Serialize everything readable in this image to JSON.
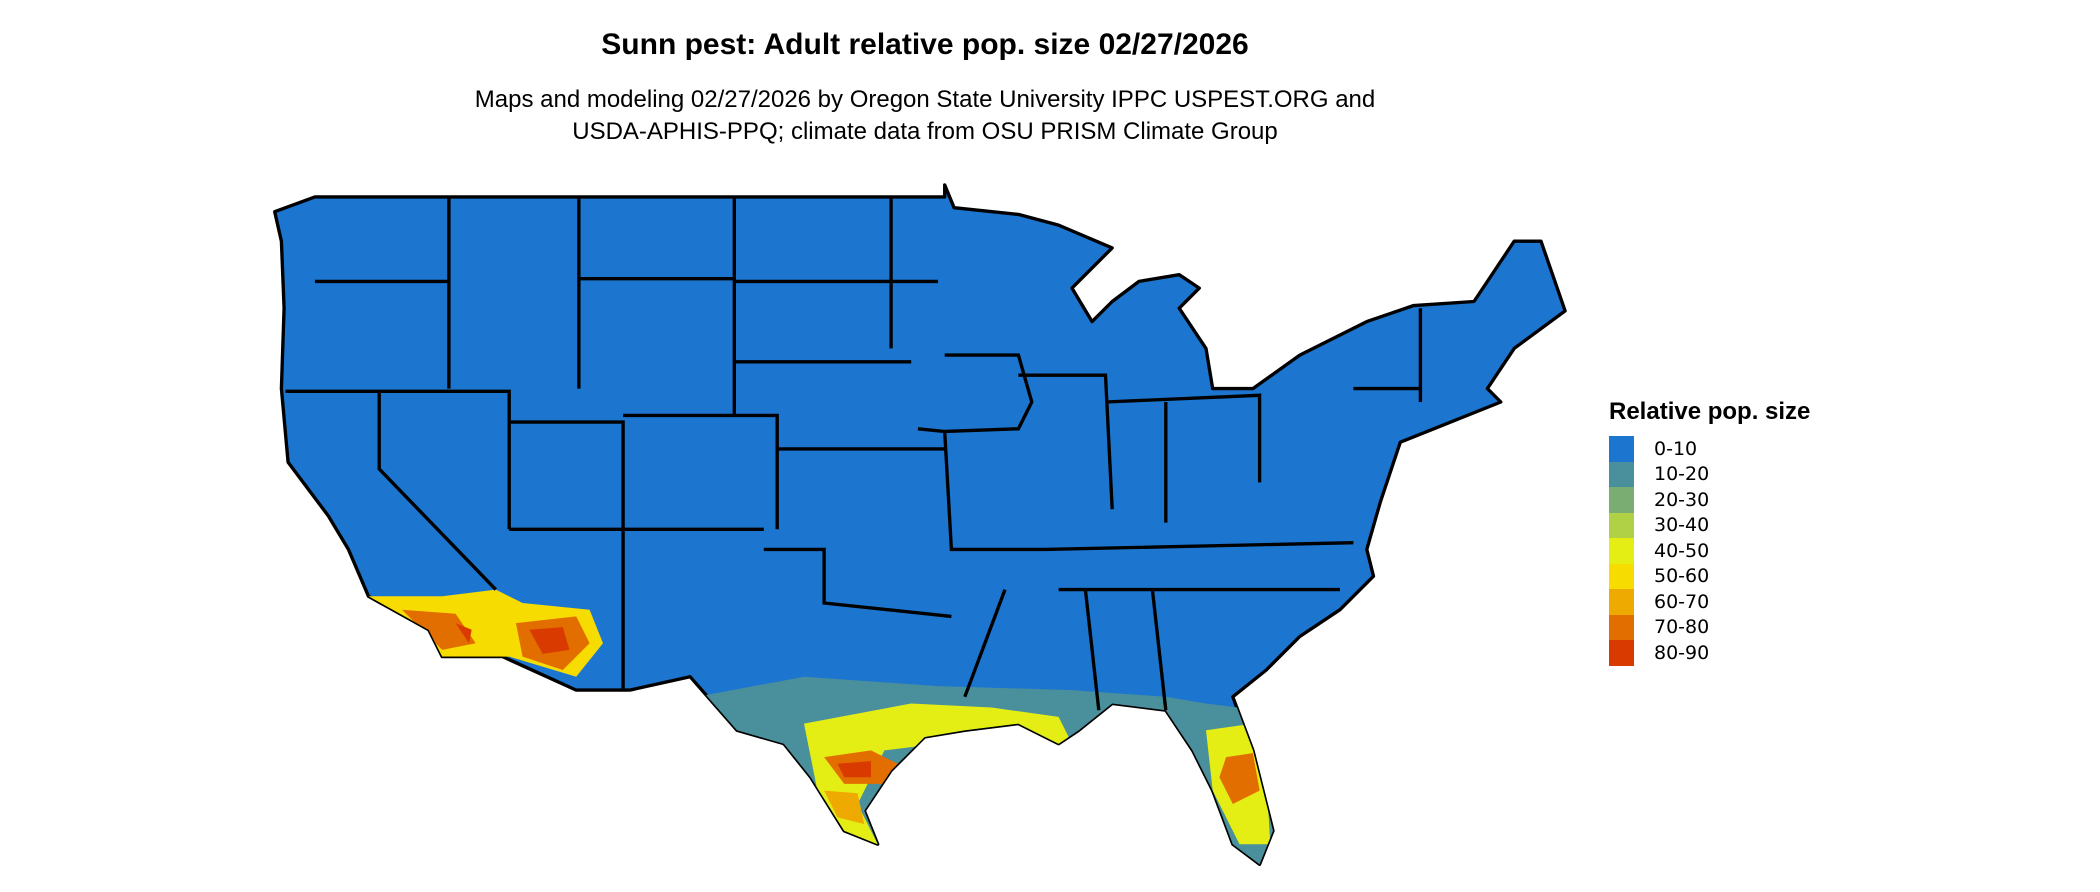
{
  "title": "Sunn pest: Adult relative pop. size 02/27/2026",
  "subtitle_lines": [
    "Maps and modeling 02/27/2026 by Oregon State University IPPC USPEST.ORG and",
    "USDA-APHIS-PPQ; climate data from OSU PRISM Climate Group"
  ],
  "legend": {
    "title": "Relative pop. size",
    "items": [
      {
        "label": "0-10",
        "color": "#1c75cf"
      },
      {
        "label": "10-20",
        "color": "#4a8f9c"
      },
      {
        "label": "20-30",
        "color": "#7aad72"
      },
      {
        "label": "30-40",
        "color": "#b0d045"
      },
      {
        "label": "40-50",
        "color": "#e4ee14"
      },
      {
        "label": "50-60",
        "color": "#f6dc00"
      },
      {
        "label": "60-70",
        "color": "#eeaa00"
      },
      {
        "label": "70-80",
        "color": "#e36e00"
      },
      {
        "label": "80-90",
        "color": "#d93a00"
      }
    ]
  }
}
